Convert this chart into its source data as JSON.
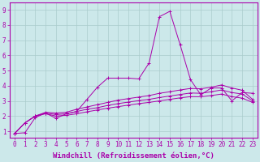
{
  "xlabel": "Windchill (Refroidissement éolien,°C)",
  "background_color": "#cce8ea",
  "grid_color": "#aacccc",
  "line_color": "#aa00aa",
  "x_ticks": [
    0,
    1,
    2,
    3,
    4,
    5,
    6,
    7,
    8,
    9,
    10,
    11,
    12,
    13,
    14,
    15,
    16,
    17,
    18,
    19,
    20,
    21,
    22,
    23
  ],
  "y_ticks": [
    1,
    2,
    3,
    4,
    5,
    6,
    7,
    8,
    9
  ],
  "xlim": [
    -0.5,
    23.5
  ],
  "ylim": [
    0.6,
    9.5
  ],
  "series": [
    [
      0.85,
      0.9,
      1.9,
      2.2,
      1.85,
      2.15,
      2.3,
      3.1,
      3.9,
      4.5,
      4.5,
      4.5,
      4.45,
      5.5,
      8.55,
      8.9,
      6.7,
      4.4,
      3.4,
      3.85,
      3.85,
      3.0,
      3.55,
      3.5
    ],
    [
      0.85,
      1.55,
      2.0,
      2.25,
      2.2,
      2.25,
      2.45,
      2.6,
      2.75,
      2.9,
      3.05,
      3.15,
      3.25,
      3.35,
      3.5,
      3.6,
      3.72,
      3.82,
      3.8,
      3.9,
      4.05,
      3.85,
      3.7,
      3.1
    ],
    [
      0.85,
      1.55,
      2.0,
      2.2,
      2.1,
      2.15,
      2.3,
      2.45,
      2.55,
      2.7,
      2.82,
      2.92,
      3.02,
      3.1,
      3.22,
      3.32,
      3.42,
      3.52,
      3.5,
      3.6,
      3.72,
      3.55,
      3.45,
      3.0
    ],
    [
      0.85,
      1.55,
      2.0,
      2.15,
      2.0,
      2.05,
      2.15,
      2.28,
      2.4,
      2.52,
      2.62,
      2.72,
      2.82,
      2.9,
      3.0,
      3.1,
      3.2,
      3.28,
      3.27,
      3.35,
      3.45,
      3.28,
      3.18,
      2.9
    ]
  ],
  "tick_fontsize": 5.5,
  "label_fontsize": 6.5,
  "marker": "+"
}
